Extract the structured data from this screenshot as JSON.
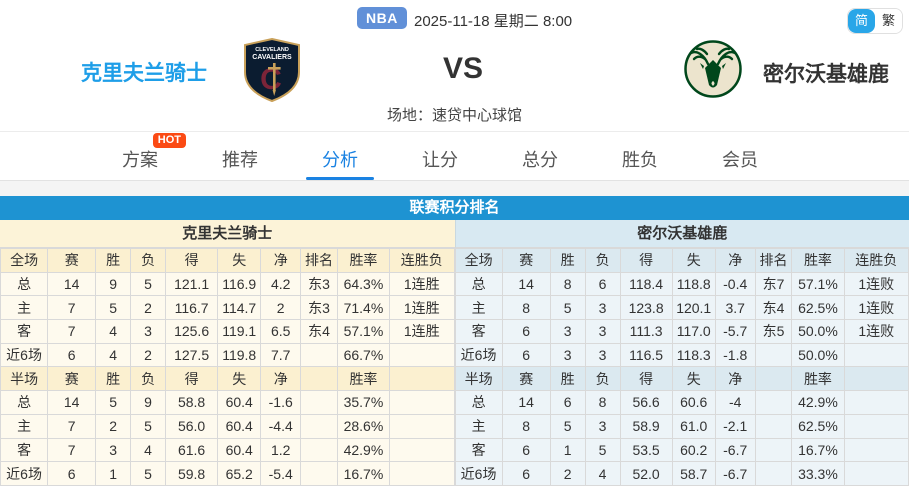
{
  "header": {
    "league_badge": "NBA",
    "datetime": "2025-11-18 星期二 8:00",
    "lang_simplified": "简",
    "lang_traditional": "繁"
  },
  "match": {
    "home_team": "克里夫兰骑士",
    "away_team": "密尔沃基雄鹿",
    "vs": "VS",
    "venue": "场地：速贷中心球馆",
    "home_logo_icon": "cavaliers-shield-logo",
    "away_logo_icon": "bucks-deer-logo"
  },
  "tabs": [
    {
      "label": "方案",
      "badge": "HOT",
      "active": false
    },
    {
      "label": "推荐",
      "active": false
    },
    {
      "label": "分析",
      "active": true
    },
    {
      "label": "让分",
      "active": false
    },
    {
      "label": "总分",
      "active": false
    },
    {
      "label": "胜负",
      "active": false
    },
    {
      "label": "会员",
      "active": false
    }
  ],
  "standings": {
    "title": "联赛积分排名",
    "left": {
      "team": "克里夫兰骑士",
      "full_header": [
        "全场",
        "赛",
        "胜",
        "负",
        "得",
        "失",
        "净",
        "排名",
        "胜率",
        "连胜负"
      ],
      "full_rows": [
        [
          "总",
          "14",
          "9",
          "5",
          "121.1",
          "116.9",
          "4.2",
          "东3",
          "64.3%",
          "1连胜"
        ],
        [
          "主",
          "7",
          "5",
          "2",
          "116.7",
          "114.7",
          "2",
          "东3",
          "71.4%",
          "1连胜"
        ],
        [
          "客",
          "7",
          "4",
          "3",
          "125.6",
          "119.1",
          "6.5",
          "东4",
          "57.1%",
          "1连胜"
        ],
        [
          "近6场",
          "6",
          "4",
          "2",
          "127.5",
          "119.8",
          "7.7",
          "",
          "66.7%",
          ""
        ]
      ],
      "half_header": [
        "半场",
        "赛",
        "胜",
        "负",
        "得",
        "失",
        "净",
        "",
        "胜率",
        ""
      ],
      "half_rows": [
        [
          "总",
          "14",
          "5",
          "9",
          "58.8",
          "60.4",
          "-1.6",
          "",
          "35.7%",
          ""
        ],
        [
          "主",
          "7",
          "2",
          "5",
          "56.0",
          "60.4",
          "-4.4",
          "",
          "28.6%",
          ""
        ],
        [
          "客",
          "7",
          "3",
          "4",
          "61.6",
          "60.4",
          "1.2",
          "",
          "42.9%",
          ""
        ],
        [
          "近6场",
          "6",
          "1",
          "5",
          "59.8",
          "65.2",
          "-5.4",
          "",
          "16.7%",
          ""
        ]
      ]
    },
    "right": {
      "team": "密尔沃基雄鹿",
      "full_header": [
        "全场",
        "赛",
        "胜",
        "负",
        "得",
        "失",
        "净",
        "排名",
        "胜率",
        "连胜负"
      ],
      "full_rows": [
        [
          "总",
          "14",
          "8",
          "6",
          "118.4",
          "118.8",
          "-0.4",
          "东7",
          "57.1%",
          "1连败"
        ],
        [
          "主",
          "8",
          "5",
          "3",
          "123.8",
          "120.1",
          "3.7",
          "东4",
          "62.5%",
          "1连败"
        ],
        [
          "客",
          "6",
          "3",
          "3",
          "111.3",
          "117.0",
          "-5.7",
          "东5",
          "50.0%",
          "1连败"
        ],
        [
          "近6场",
          "6",
          "3",
          "3",
          "116.5",
          "118.3",
          "-1.8",
          "",
          "50.0%",
          ""
        ]
      ],
      "half_header": [
        "半场",
        "赛",
        "胜",
        "负",
        "得",
        "失",
        "净",
        "",
        "胜率",
        ""
      ],
      "half_rows": [
        [
          "总",
          "14",
          "6",
          "8",
          "56.6",
          "60.6",
          "-4",
          "",
          "42.9%",
          ""
        ],
        [
          "主",
          "8",
          "5",
          "3",
          "58.9",
          "61.0",
          "-2.1",
          "",
          "62.5%",
          ""
        ],
        [
          "客",
          "6",
          "1",
          "5",
          "53.5",
          "60.2",
          "-6.7",
          "",
          "16.7%",
          ""
        ],
        [
          "近6场",
          "6",
          "2",
          "4",
          "52.0",
          "58.7",
          "-6.7",
          "",
          "33.3%",
          ""
        ]
      ]
    }
  },
  "colors": {
    "accent_blue": "#1a82e2",
    "banner_blue": "#1e93d2",
    "home_name_blue": "#1e9ee8",
    "left_panel_cream": "#fcf3d8",
    "right_panel_blue": "#d8e9f2",
    "value_red": "#fe0000",
    "streak_lose_green": "#0f9d0f",
    "hot_badge_orange": "#fb4a14",
    "nba_badge_blue": "#6190d8"
  }
}
